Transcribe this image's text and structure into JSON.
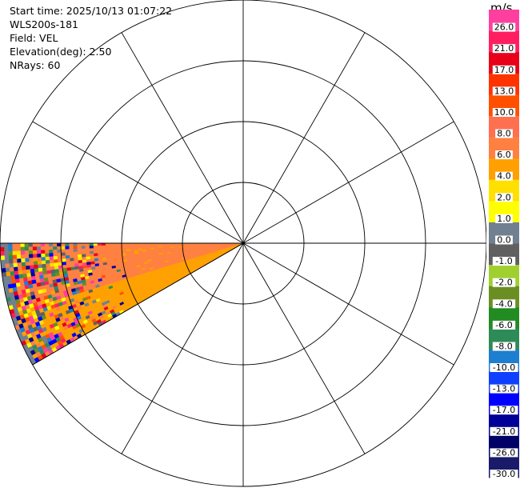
{
  "info": {
    "start_time": "Start time: 2025/10/13 01:07:22",
    "instrument": "WLS200s-181",
    "field": "Field: VEL",
    "elevation": "Elevation(deg): 2.50",
    "nrays": "NRays: 60"
  },
  "colorbar": {
    "unit": "m/s",
    "ticks": [
      "26.0",
      "21.0",
      "17.0",
      "13.0",
      "10.0",
      "8.0",
      "6.0",
      "4.0",
      "2.0",
      "1.0",
      "0.0",
      "-1.0",
      "-2.0",
      "-4.0",
      "-6.0",
      "-8.0",
      "-10.0",
      "-13.0",
      "-17.0",
      "-21.0",
      "-26.0",
      "-30.0"
    ],
    "colors": [
      "#ff3fa0",
      "#ff1f60",
      "#e8001a",
      "#ff3300",
      "#ff5000",
      "#ff7050",
      "#ff8040",
      "#ffa000",
      "#ffe000",
      "#ffff00",
      "#708090",
      "#606060",
      "#a0d030",
      "#6b8e23",
      "#228b22",
      "#2e8b57",
      "#1e7fd0",
      "#1040ff",
      "#0000ff",
      "#000099",
      "#000066",
      "#1a1a6a"
    ]
  },
  "chart_data": {
    "type": "ppi",
    "title": "",
    "rings": 4,
    "spokes_deg": 30,
    "sector_deg": [
      180,
      210
    ],
    "field": "VEL",
    "units": "m/s",
    "vmin": -30.0,
    "vmax": 26.0
  }
}
